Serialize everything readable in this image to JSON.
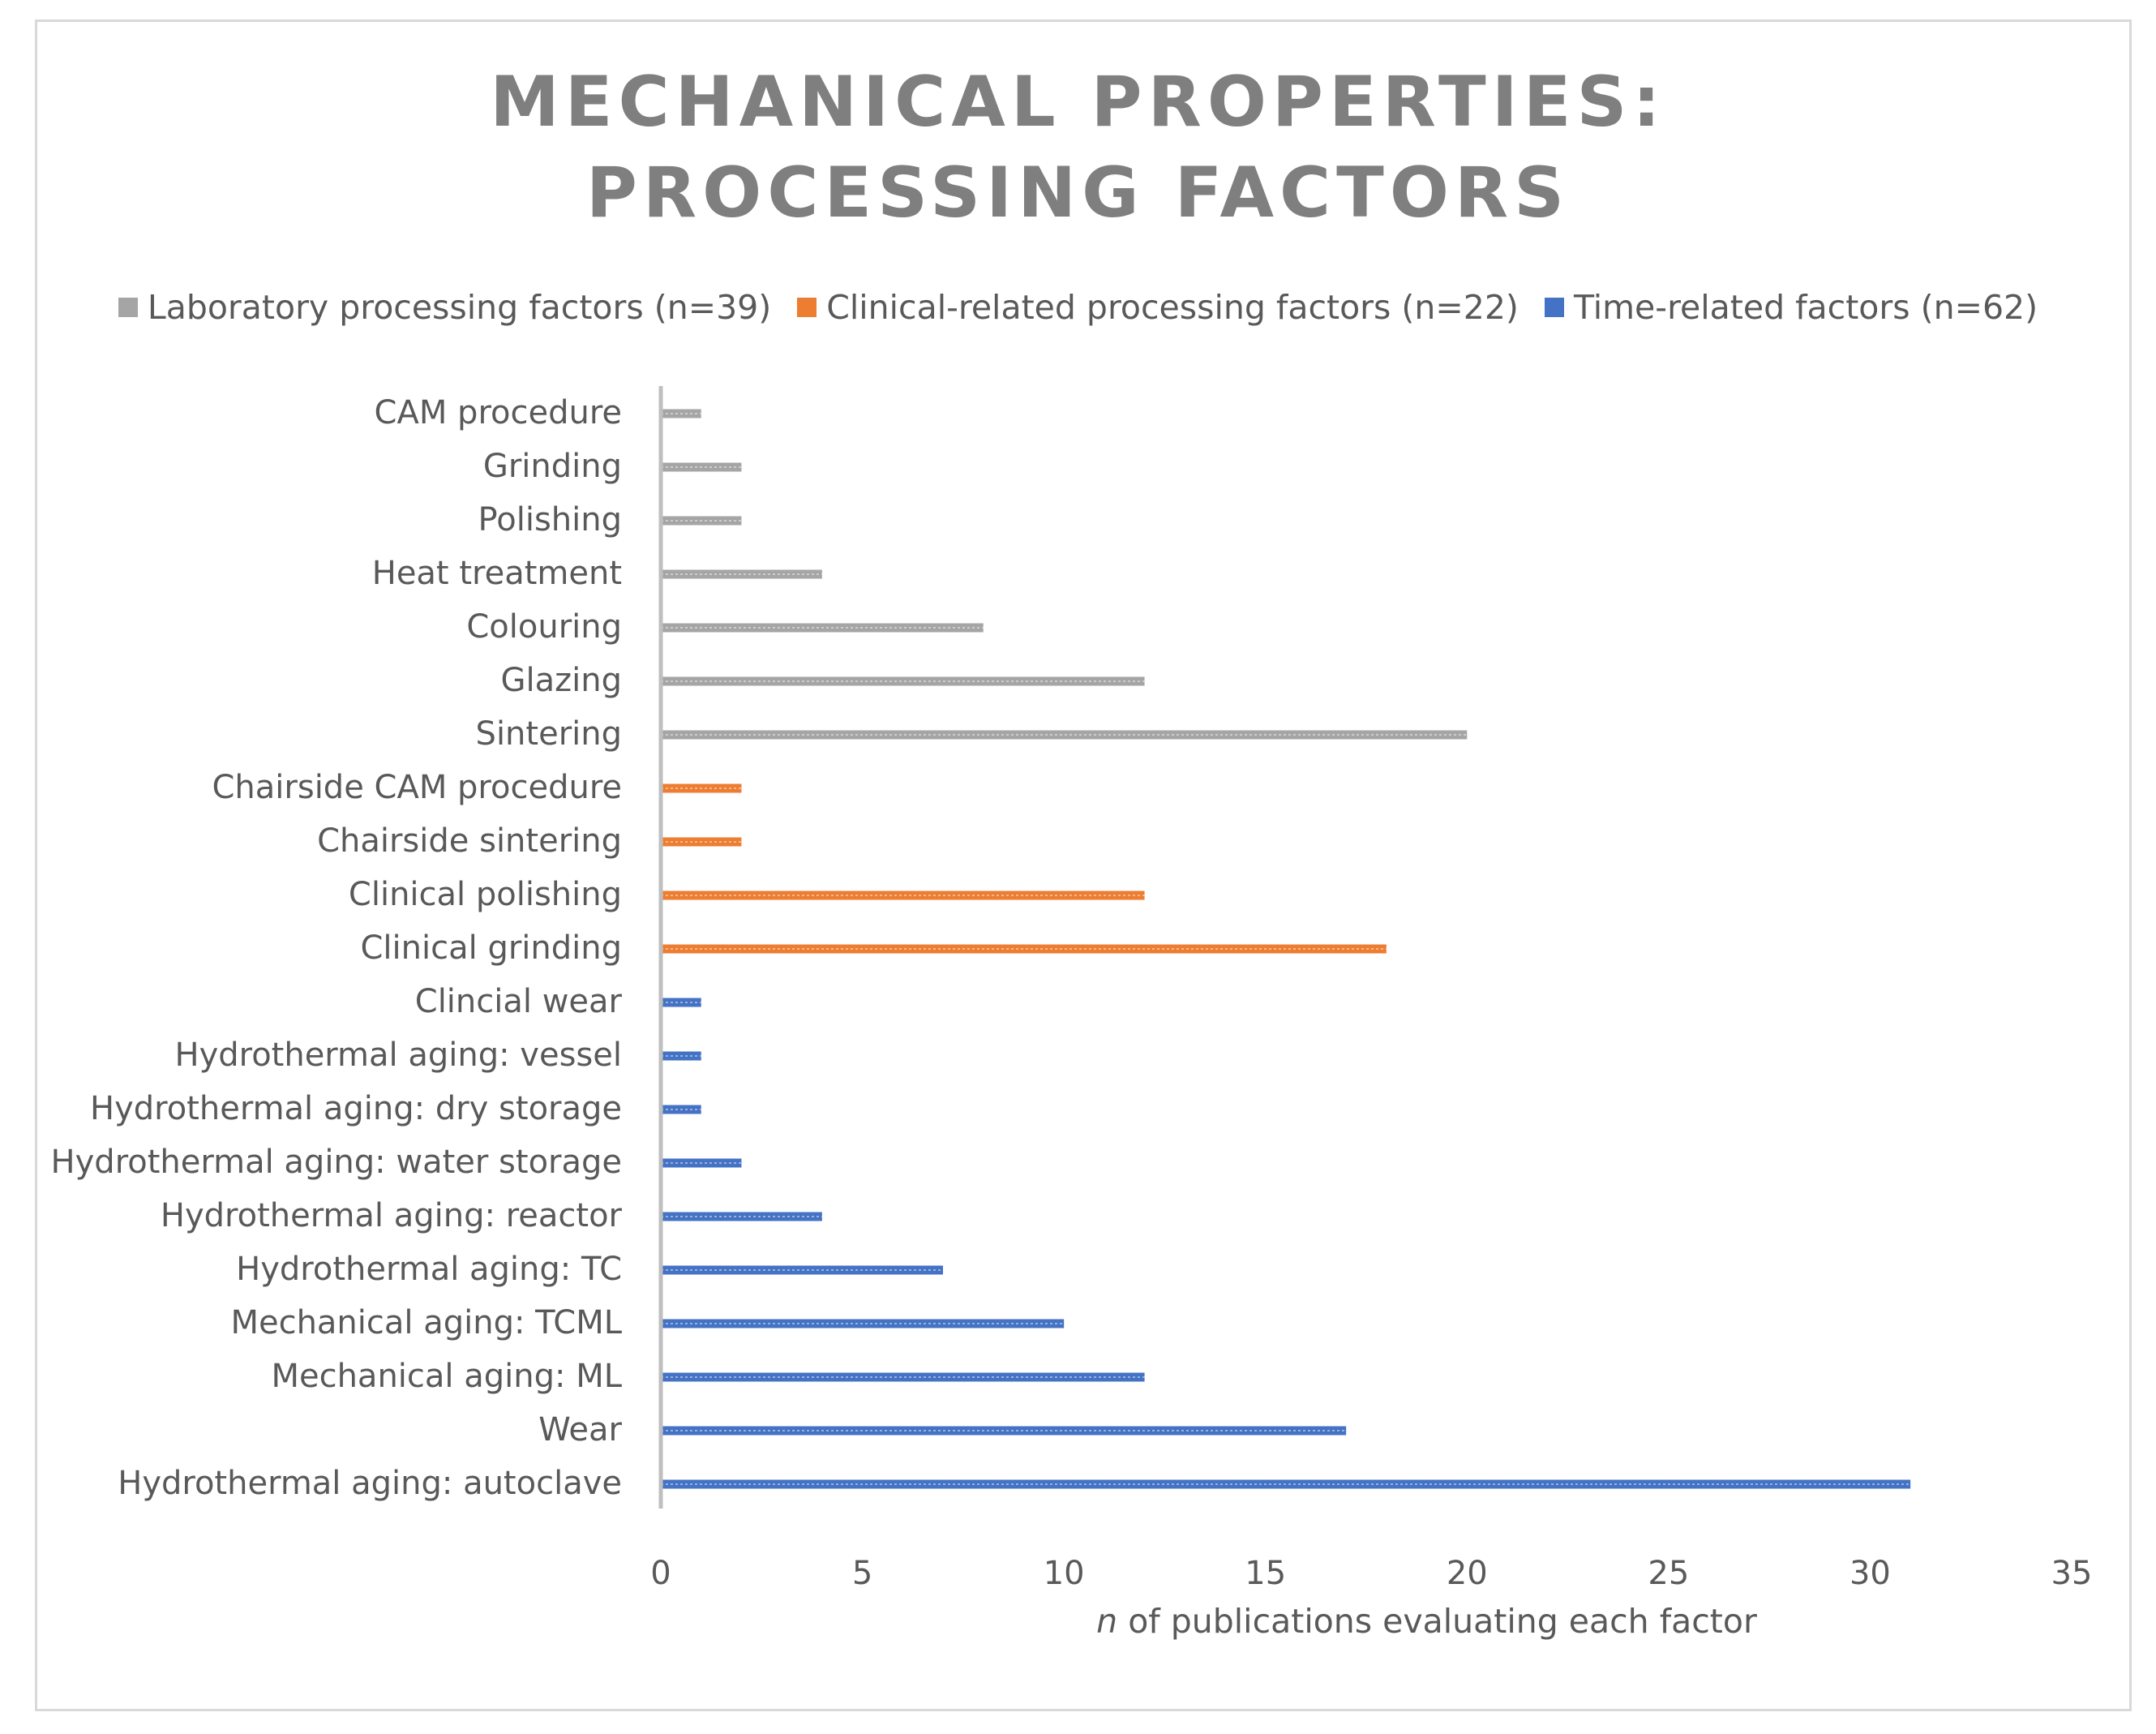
{
  "chart_data": {
    "type": "bar",
    "orientation": "horizontal",
    "title_lines": [
      "MECHANICAL PROPERTIES:",
      "PROCESSING FACTORS"
    ],
    "xlabel_italic": "n",
    "xlabel_rest": " of publications evaluating each factor",
    "ylabel": "",
    "xlim": [
      0,
      35
    ],
    "xticks": [
      "0",
      "5",
      "10",
      "15",
      "20",
      "25",
      "30",
      "35"
    ],
    "xtick_values": [
      0,
      5,
      10,
      15,
      20,
      25,
      30,
      35
    ],
    "grid": false,
    "legend_position": "top",
    "series": [
      {
        "name": "Laboratory processing factors (n=39)",
        "color": "#a5a5a5",
        "items": [
          {
            "label": "CAM procedure",
            "value": 1
          },
          {
            "label": "Grinding",
            "value": 2
          },
          {
            "label": "Polishing",
            "value": 2
          },
          {
            "label": "Heat treatment",
            "value": 4
          },
          {
            "label": "Colouring",
            "value": 8
          },
          {
            "label": "Glazing",
            "value": 12
          },
          {
            "label": "Sintering",
            "value": 20
          }
        ]
      },
      {
        "name": "Clinical-related processing factors (n=22)",
        "color": "#ed7d31",
        "items": [
          {
            "label": "Chairside CAM procedure",
            "value": 2
          },
          {
            "label": "Chairside sintering",
            "value": 2
          },
          {
            "label": "Clinical polishing",
            "value": 12
          },
          {
            "label": "Clinical grinding",
            "value": 18
          }
        ]
      },
      {
        "name": "Time-related factors (n=62)",
        "color": "#4472c4",
        "items": [
          {
            "label": "Clincial wear",
            "value": 1
          },
          {
            "label": "Hydrothermal aging: vessel",
            "value": 1
          },
          {
            "label": "Hydrothermal aging: dry storage",
            "value": 1
          },
          {
            "label": "Hydrothermal aging: water storage",
            "value": 2
          },
          {
            "label": "Hydrothermal aging: reactor",
            "value": 4
          },
          {
            "label": "Hydrothermal aging: TC",
            "value": 7
          },
          {
            "label": "Mechanical aging: TCML",
            "value": 10
          },
          {
            "label": "Mechanical aging: ML",
            "value": 12
          },
          {
            "label": "Wear",
            "value": 17
          },
          {
            "label": "Hydrothermal aging: autoclave",
            "value": 31
          }
        ]
      }
    ]
  }
}
